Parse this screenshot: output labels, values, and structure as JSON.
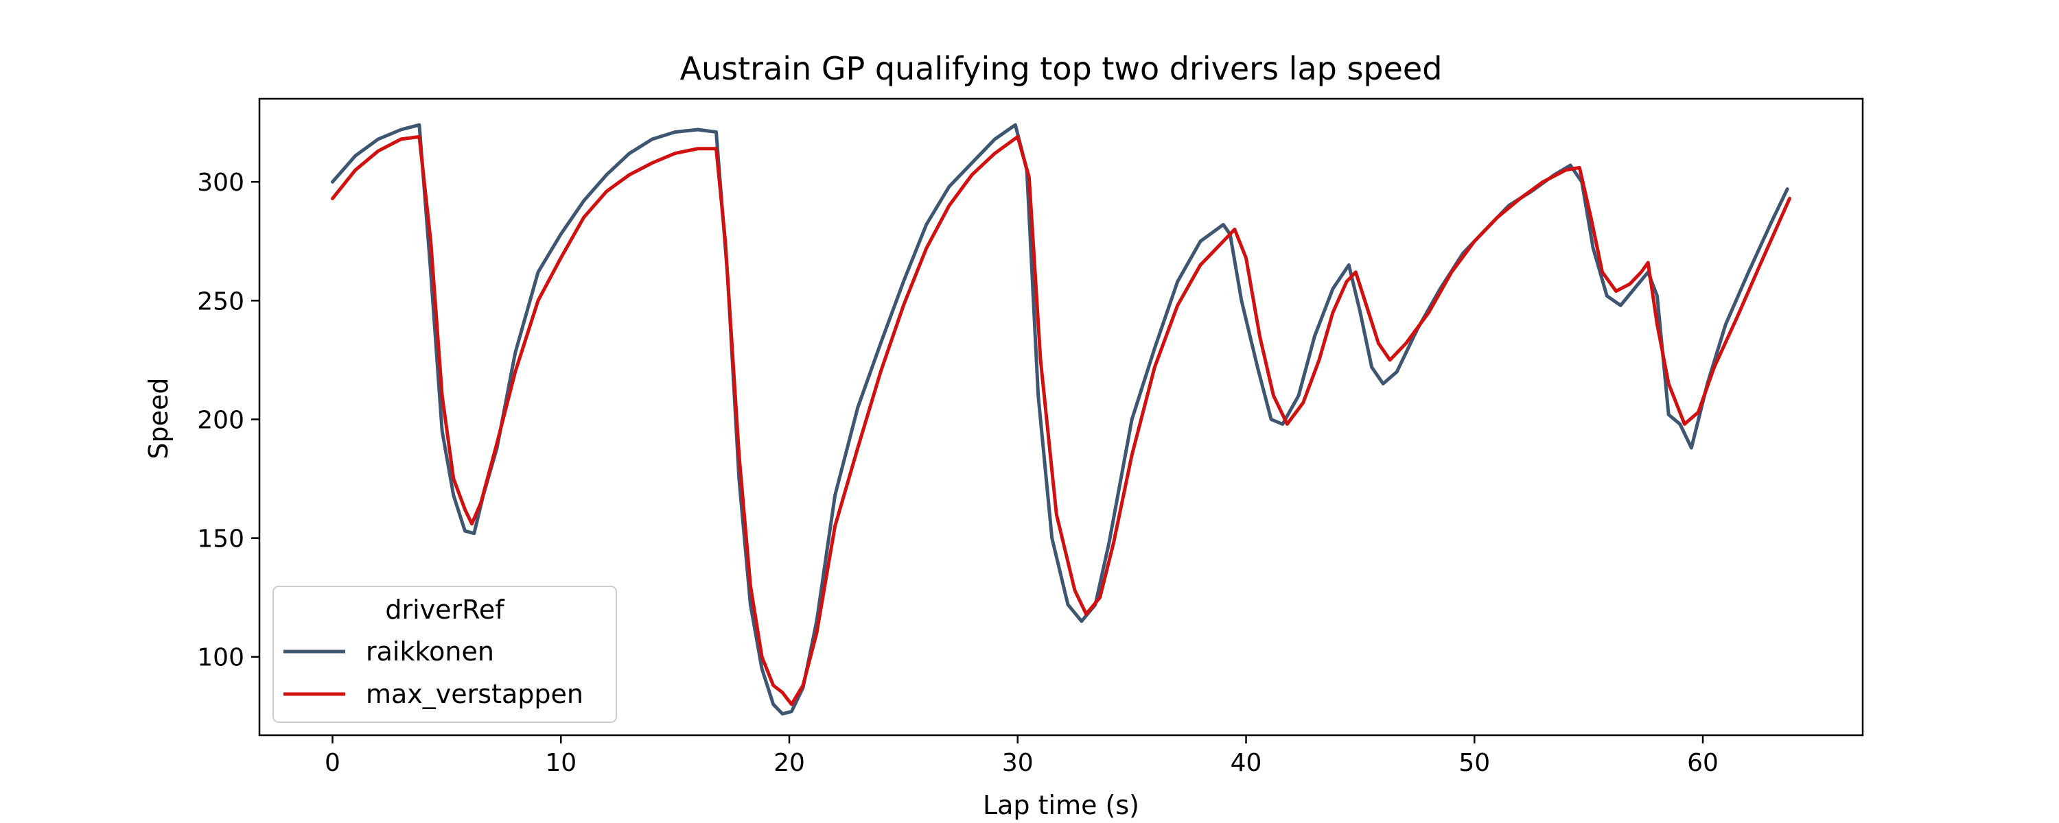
{
  "chart_data": {
    "type": "line",
    "title": "Austrain GP qualifying top two drivers lap speed",
    "xlabel": "Lap time (s)",
    "ylabel": "Speed",
    "xlim": [
      -3.2,
      67.0
    ],
    "ylim": [
      67,
      335
    ],
    "xticks": [
      0,
      10,
      20,
      30,
      40,
      50,
      60
    ],
    "yticks": [
      100,
      150,
      200,
      250,
      300
    ],
    "grid": false,
    "legend": {
      "title": "driverRef",
      "placement": "lower-left"
    },
    "series": [
      {
        "name": "raikkonen",
        "color": "#3f5673",
        "x": [
          0,
          1,
          2,
          3,
          3.8,
          4.3,
          4.8,
          5.3,
          5.8,
          6.2,
          6.6,
          7.2,
          8,
          9,
          10,
          11,
          12,
          13,
          14,
          15,
          16,
          16.8,
          17.3,
          17.8,
          18.3,
          18.8,
          19.3,
          19.7,
          20.1,
          20.6,
          21.2,
          22,
          23,
          24,
          25,
          26,
          27,
          28,
          29,
          29.9,
          30.4,
          30.9,
          31.5,
          32.2,
          32.8,
          33.4,
          34,
          35,
          36,
          37,
          38,
          39,
          39.3,
          39.8,
          40.5,
          41.1,
          41.6,
          42.3,
          43,
          43.8,
          44.5,
          45,
          45.5,
          46,
          46.6,
          47.5,
          48.5,
          49.5,
          50.5,
          51.5,
          52.5,
          53.5,
          54.2,
          54.7,
          55.2,
          55.8,
          56.4,
          57,
          57.6,
          58,
          58.5,
          59,
          59.5,
          60.2,
          61,
          62,
          63,
          63.7
        ],
        "values": [
          300,
          311,
          318,
          322,
          324,
          262,
          195,
          168,
          153,
          152,
          168,
          188,
          228,
          262,
          278,
          292,
          303,
          312,
          318,
          321,
          322,
          321,
          260,
          175,
          122,
          95,
          80,
          76,
          77,
          87,
          115,
          168,
          205,
          232,
          258,
          282,
          298,
          308,
          318,
          324,
          305,
          210,
          150,
          122,
          115,
          122,
          148,
          200,
          230,
          258,
          275,
          282,
          278,
          250,
          222,
          200,
          198,
          210,
          235,
          255,
          265,
          245,
          222,
          215,
          220,
          238,
          255,
          270,
          280,
          290,
          296,
          303,
          307,
          300,
          272,
          252,
          248,
          255,
          262,
          252,
          202,
          198,
          188,
          215,
          240,
          262,
          283,
          297
        ]
      },
      {
        "name": "max_verstappen",
        "color": "#d11010",
        "x": [
          0,
          1,
          2,
          3,
          3.8,
          4.3,
          4.8,
          5.3,
          5.8,
          6.1,
          6.5,
          7.2,
          8,
          9,
          10,
          11,
          12,
          13,
          14,
          15,
          16,
          16.8,
          17.2,
          17.8,
          18.3,
          18.8,
          19.3,
          19.7,
          20.1,
          20.6,
          21.2,
          22,
          23,
          24,
          25,
          26,
          27,
          28,
          29,
          30,
          30.5,
          31,
          31.7,
          32.5,
          33,
          33.6,
          34.2,
          35,
          36,
          37,
          38,
          39,
          39.5,
          40,
          40.6,
          41.2,
          41.8,
          42.5,
          43.2,
          43.8,
          44.4,
          44.8,
          45.2,
          45.8,
          46.3,
          47,
          48,
          49,
          50,
          51,
          52,
          53,
          54,
          54.6,
          55.1,
          55.6,
          56.2,
          56.8,
          57.3,
          57.6,
          58,
          58.5,
          59.2,
          59.8,
          60.5,
          61.5,
          62.5,
          63.8
        ],
        "values": [
          293,
          305,
          313,
          318,
          319,
          275,
          210,
          175,
          162,
          156,
          165,
          190,
          220,
          250,
          268,
          285,
          296,
          303,
          308,
          312,
          314,
          314,
          275,
          185,
          130,
          100,
          88,
          85,
          80,
          88,
          110,
          155,
          188,
          220,
          248,
          272,
          290,
          303,
          312,
          319,
          302,
          225,
          160,
          128,
          118,
          125,
          148,
          185,
          222,
          248,
          265,
          275,
          280,
          268,
          235,
          210,
          198,
          207,
          225,
          245,
          258,
          262,
          250,
          232,
          225,
          232,
          245,
          262,
          275,
          285,
          293,
          300,
          305,
          306,
          285,
          262,
          254,
          257,
          262,
          266,
          240,
          215,
          198,
          203,
          222,
          243,
          265,
          293
        ]
      }
    ]
  }
}
